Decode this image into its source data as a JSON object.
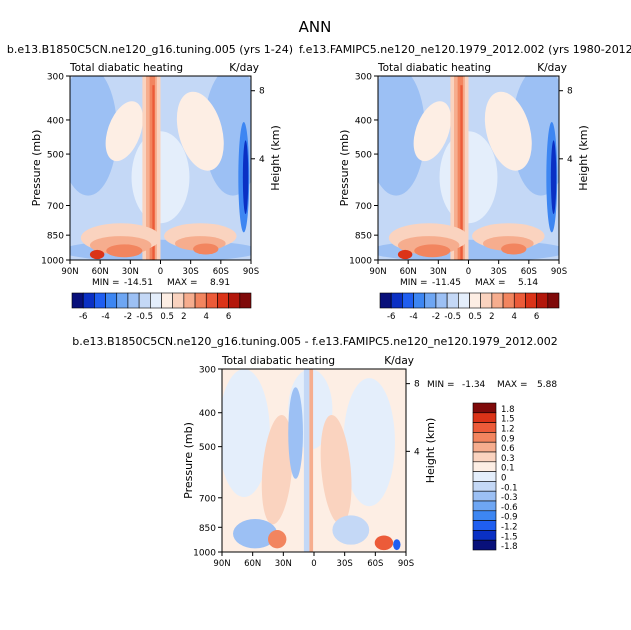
{
  "page_title": "ANN",
  "palette_main": [
    "#08107a",
    "#0a30c4",
    "#1f5ef0",
    "#3d86f2",
    "#6ea6f3",
    "#9cc0f4",
    "#c4d8f6",
    "#e4eefb",
    "#fdeee4",
    "#fad3bf",
    "#f6ad8e",
    "#f2855f",
    "#ec5b39",
    "#db3318",
    "#b3170b",
    "#7f0a0a"
  ],
  "palette_diff": [
    "#08107a",
    "#0a30c4",
    "#1f5ef0",
    "#3d86f2",
    "#6ea6f3",
    "#9cc0f4",
    "#c4d8f6",
    "#e4eefb",
    "#fdeee4",
    "#fad3bf",
    "#f6ad8e",
    "#f2855f",
    "#ec5b39",
    "#db3318",
    "#7f0a0a"
  ],
  "chart_data": [
    {
      "type": "heatmap",
      "title": "b.e13.B1850C5CN.ne120_g16.tuning.005 (yrs 1-24)",
      "left_string": "Total diabatic heating",
      "right_string": "K/day",
      "xlabel": "",
      "ylabel": "Pressure (mb)",
      "ylabel_right": "Height (km)",
      "x_ticks": [
        "90N",
        "60N",
        "30N",
        "0",
        "30S",
        "60S",
        "90S"
      ],
      "y_ticks": [
        "300",
        "400",
        "500",
        "700",
        "850",
        "1000"
      ],
      "y_ticks_right": [
        "8",
        "4"
      ],
      "stats": {
        "min_label": "MIN =",
        "min": "-14.51",
        "max_label": "MAX =",
        "max": "8.91"
      },
      "colorbar_labels": [
        "-6",
        "-4",
        "-2",
        "-0.5",
        "0.5",
        "2",
        "4",
        "6"
      ]
    },
    {
      "type": "heatmap",
      "title": "f.e13.FAMIPC5.ne120_ne120.1979_2012.002 (yrs 1980-2012)",
      "left_string": "Total diabatic heating",
      "right_string": "K/day",
      "xlabel": "",
      "ylabel": "Pressure (mb)",
      "ylabel_right": "Height (km)",
      "x_ticks": [
        "90N",
        "60N",
        "30N",
        "0",
        "30S",
        "60S",
        "90S"
      ],
      "y_ticks": [
        "300",
        "400",
        "500",
        "700",
        "850",
        "1000"
      ],
      "y_ticks_right": [
        "8",
        "4"
      ],
      "stats": {
        "min_label": "MIN =",
        "min": "-11.45",
        "max_label": "MAX =",
        "max": "5.14"
      },
      "colorbar_labels": [
        "-6",
        "-4",
        "-2",
        "-0.5",
        "0.5",
        "2",
        "4",
        "6"
      ]
    },
    {
      "type": "heatmap",
      "title": "b.e13.B1850C5CN.ne120_g16.tuning.005 - f.e13.FAMIPC5.ne120_ne120.1979_2012.002",
      "left_string": "Total diabatic heating",
      "right_string": "K/day",
      "xlabel": "",
      "ylabel": "Pressure (mb)",
      "ylabel_right": "Height (km)",
      "x_ticks": [
        "90N",
        "60N",
        "30N",
        "0",
        "30S",
        "60S",
        "90S"
      ],
      "y_ticks": [
        "300",
        "400",
        "500",
        "700",
        "850",
        "1000"
      ],
      "y_ticks_right": [
        "8",
        "4"
      ],
      "stats": {
        "min_label": "MIN =",
        "min": "-1.34",
        "max_label": "MAX =",
        "max": "5.88"
      },
      "colorbar_labels": [
        "1.8",
        "1.5",
        "1.2",
        "0.9",
        "0.6",
        "0.3",
        "0.1",
        "0",
        "-0.1",
        "-0.3",
        "-0.6",
        "-0.9",
        "-1.2",
        "-1.5",
        "-1.8"
      ]
    }
  ]
}
